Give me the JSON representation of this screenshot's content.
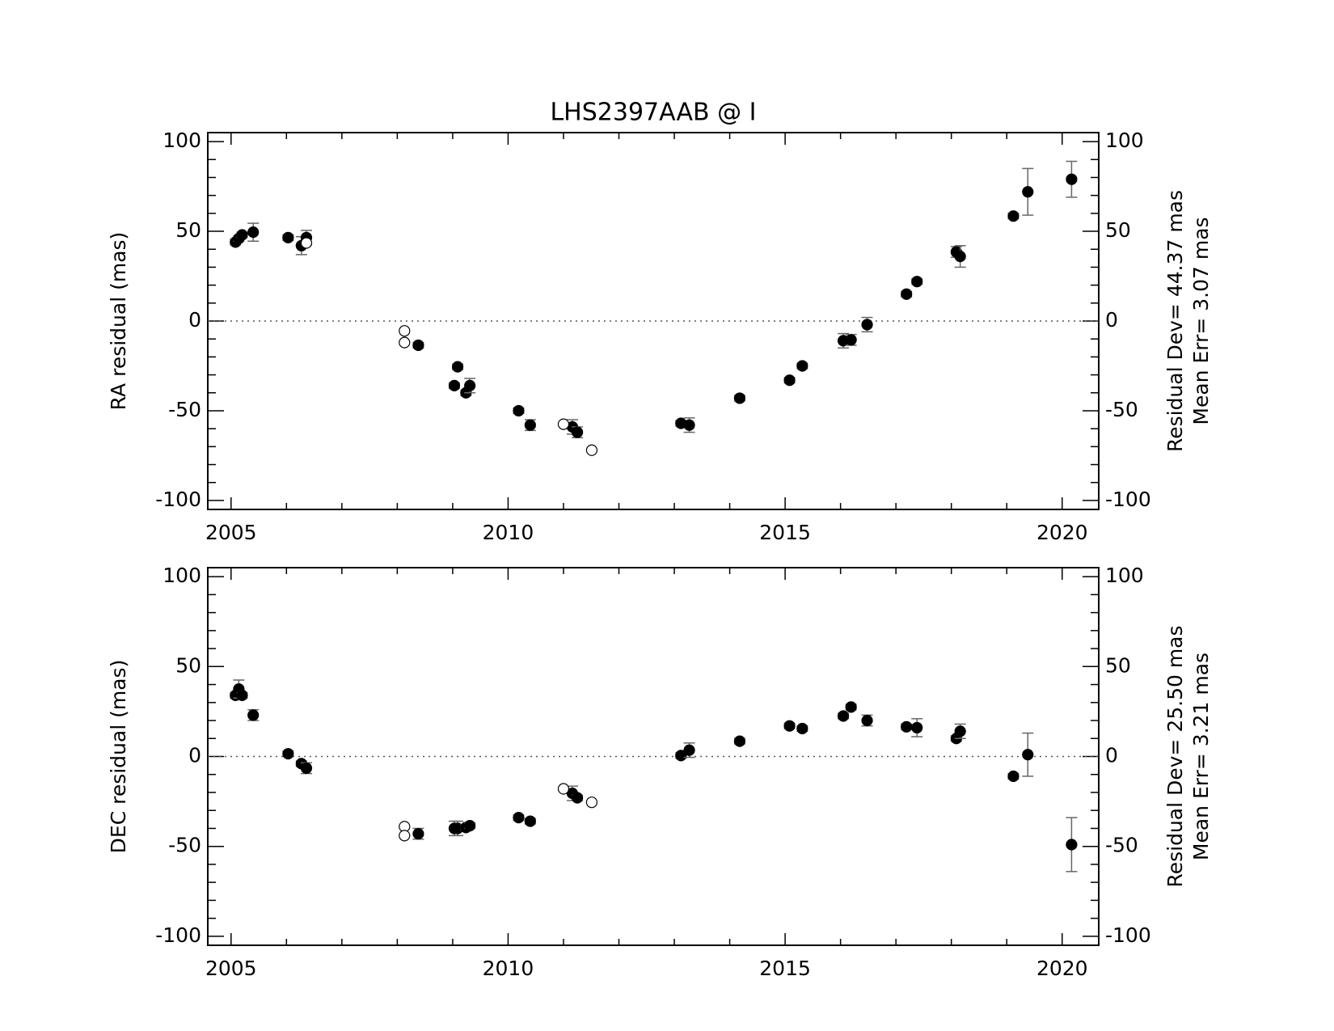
{
  "title": "LHS2397AAB @ I",
  "chart_data": [
    {
      "type": "scatter",
      "ylabel": "RA residual (mas)",
      "xlim": [
        2004.58,
        2020.66
      ],
      "ylim": [
        -105,
        105
      ],
      "xticks": [
        2005,
        2010,
        2015,
        2020
      ],
      "yticks": [
        -100,
        -50,
        0,
        50,
        100
      ],
      "xminorticks": [
        2006,
        2007,
        2008,
        2009,
        2011,
        2012,
        2013,
        2014,
        2016,
        2017,
        2018,
        2019
      ],
      "yminorticks": [
        -90,
        -80,
        -70,
        -60,
        -40,
        -30,
        -20,
        -10,
        10,
        20,
        30,
        40,
        60,
        70,
        80,
        90
      ],
      "reference_line": 0,
      "annotations": [
        "Residual Dev= 44.37 mas",
        "Mean Err= 3.07 mas"
      ],
      "series": [
        {
          "marker": "filled",
          "color": "#000000",
          "x": [
            2005.08,
            2005.14,
            2005.2,
            2005.4,
            2006.03,
            2006.27,
            2006.36,
            2008.38,
            2009.03,
            2009.09,
            2009.24,
            2009.31,
            2010.19,
            2010.4,
            2011.16,
            2011.25,
            2013.12,
            2013.27,
            2014.18,
            2015.08,
            2015.31,
            2016.05,
            2016.19,
            2016.48,
            2017.19,
            2017.38,
            2018.09,
            2018.16,
            2019.12,
            2019.38,
            2020.17
          ],
          "values": [
            44,
            46,
            48,
            49.5,
            46.5,
            42,
            46.5,
            -13.5,
            -36,
            -25.5,
            -40,
            -36,
            -50,
            -58,
            -59,
            -62,
            -57,
            -58,
            -43,
            -33,
            -25,
            -11,
            -10.5,
            -2,
            15,
            22,
            38.5,
            36,
            58.5,
            72,
            79
          ],
          "errors": [
            1.5,
            1.5,
            1.5,
            5,
            1.5,
            5,
            4,
            1.5,
            1.5,
            1.5,
            1.5,
            4,
            1.5,
            3,
            4,
            3,
            1.5,
            4,
            1.5,
            1.5,
            1.5,
            4,
            3,
            4,
            1.5,
            1.5,
            3,
            6,
            1.5,
            13,
            10
          ]
        },
        {
          "marker": "open",
          "color": "#000000",
          "x": [
            2006.36,
            2008.13,
            2008.13,
            2011.0,
            2011.51
          ],
          "values": [
            43.5,
            -5.5,
            -12,
            -57.5,
            -72
          ]
        }
      ]
    },
    {
      "type": "scatter",
      "ylabel": "DEC residual (mas)",
      "xlim": [
        2004.58,
        2020.66
      ],
      "ylim": [
        -105,
        105
      ],
      "xticks": [
        2005,
        2010,
        2015,
        2020
      ],
      "yticks": [
        -100,
        -50,
        0,
        50,
        100
      ],
      "xminorticks": [
        2006,
        2007,
        2008,
        2009,
        2011,
        2012,
        2013,
        2014,
        2016,
        2017,
        2018,
        2019
      ],
      "yminorticks": [
        -90,
        -80,
        -70,
        -60,
        -40,
        -30,
        -20,
        -10,
        10,
        20,
        30,
        40,
        60,
        70,
        80,
        90
      ],
      "reference_line": 0,
      "annotations": [
        "Residual Dev= 25.50 mas",
        "Mean Err= 3.21 mas"
      ],
      "series": [
        {
          "marker": "filled",
          "color": "#000000",
          "x": [
            2005.08,
            2005.14,
            2005.2,
            2005.4,
            2006.03,
            2006.27,
            2006.36,
            2008.38,
            2009.03,
            2009.09,
            2009.24,
            2009.31,
            2010.19,
            2010.4,
            2011.16,
            2011.25,
            2013.12,
            2013.27,
            2014.18,
            2015.08,
            2015.31,
            2016.05,
            2016.19,
            2016.48,
            2017.19,
            2017.38,
            2018.09,
            2018.16,
            2019.12,
            2019.38,
            2020.17
          ],
          "values": [
            34,
            37.5,
            34,
            23,
            1.5,
            -4,
            -6.5,
            -43,
            -40,
            -40,
            -39.5,
            -38.5,
            -34,
            -36,
            -20.5,
            -23,
            0.5,
            3.5,
            8.5,
            17,
            15.5,
            22.5,
            27.5,
            20,
            16.5,
            16,
            10,
            14,
            -11,
            1,
            -49
          ],
          "errors": [
            1.5,
            5,
            1.5,
            3,
            1.5,
            1.5,
            3,
            3,
            4,
            4,
            1.5,
            1.5,
            1.5,
            1.5,
            4,
            1.5,
            1.5,
            4,
            1.5,
            1.5,
            1.5,
            1.5,
            1.5,
            3,
            1.5,
            5,
            1.5,
            4,
            1.5,
            12,
            15
          ]
        },
        {
          "marker": "open",
          "color": "#000000",
          "x": [
            2008.13,
            2008.13,
            2011.0,
            2011.51
          ],
          "values": [
            -39,
            -44,
            -18,
            -25.5
          ]
        }
      ]
    }
  ]
}
